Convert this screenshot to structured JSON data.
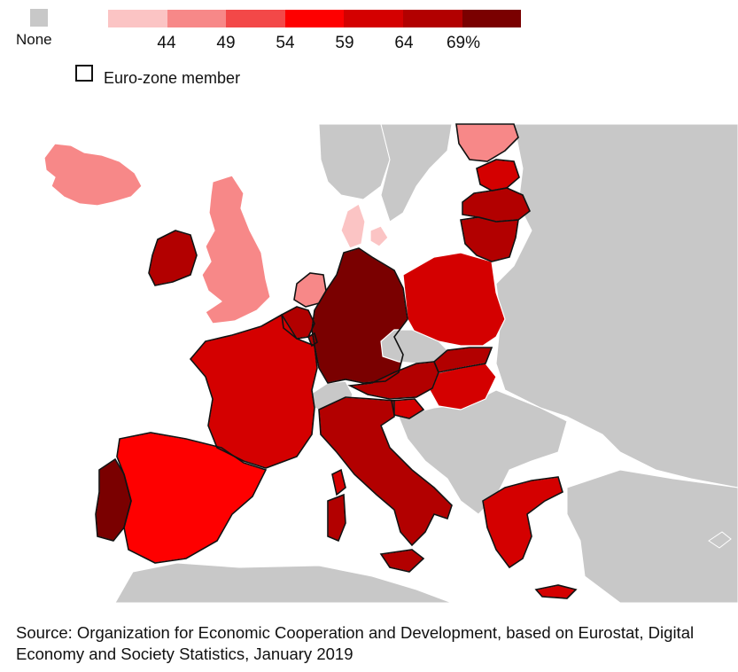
{
  "legend": {
    "none_label": "None",
    "ticks": [
      "44",
      "49",
      "54",
      "59",
      "64",
      "69%"
    ],
    "ramp_colors": [
      "#fbc4c4",
      "#f78888",
      "#f34848",
      "#fe0000",
      "#d40000",
      "#b20000",
      "#7a0000"
    ],
    "none_color": "#c8c8c8",
    "euro_label": "Euro-zone member"
  },
  "colors": {
    "sea": "#ffffff",
    "land_no_data": "#c8c8c8",
    "border": "#ffffff",
    "euro_border": "#111111"
  },
  "countries": [
    {
      "id": "iceland",
      "bin": 1,
      "euro": false
    },
    {
      "id": "norway",
      "bin": -1,
      "euro": false
    },
    {
      "id": "sweden",
      "bin": -1,
      "euro": false
    },
    {
      "id": "finland",
      "bin": 1,
      "euro": true
    },
    {
      "id": "estonia",
      "bin": 4,
      "euro": true
    },
    {
      "id": "latvia",
      "bin": 5,
      "euro": true
    },
    {
      "id": "lithuania",
      "bin": 5,
      "euro": true
    },
    {
      "id": "denmark",
      "bin": 0,
      "euro": false
    },
    {
      "id": "uk",
      "bin": 1,
      "euro": false
    },
    {
      "id": "ireland",
      "bin": 5,
      "euro": true
    },
    {
      "id": "netherlands",
      "bin": 1,
      "euro": true
    },
    {
      "id": "belgium",
      "bin": 5,
      "euro": true
    },
    {
      "id": "luxembourg",
      "bin": 5,
      "euro": true
    },
    {
      "id": "germany",
      "bin": 6,
      "euro": true
    },
    {
      "id": "poland",
      "bin": 4,
      "euro": false
    },
    {
      "id": "czechia",
      "bin": -1,
      "euro": false
    },
    {
      "id": "slovakia",
      "bin": 5,
      "euro": true
    },
    {
      "id": "hungary",
      "bin": 4,
      "euro": false
    },
    {
      "id": "austria",
      "bin": 5,
      "euro": true
    },
    {
      "id": "switzerland",
      "bin": -1,
      "euro": false
    },
    {
      "id": "slovenia",
      "bin": 4,
      "euro": true
    },
    {
      "id": "france",
      "bin": 4,
      "euro": true
    },
    {
      "id": "spain",
      "bin": 3,
      "euro": true
    },
    {
      "id": "portugal",
      "bin": 6,
      "euro": true
    },
    {
      "id": "italy",
      "bin": 5,
      "euro": true
    },
    {
      "id": "greece",
      "bin": 4,
      "euro": true
    }
  ],
  "source": "Source: Organization for Economic Cooperation and Development, based on Eurostat, Digital Economy and Society Statistics, January 2019"
}
